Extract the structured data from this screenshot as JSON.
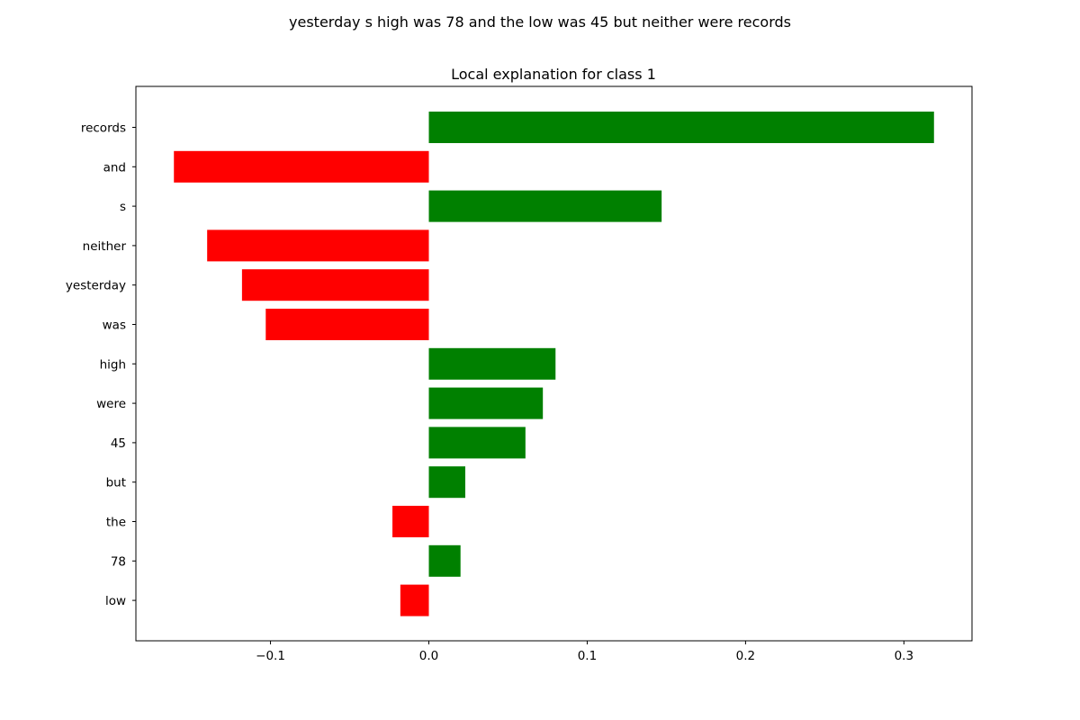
{
  "figure": {
    "suptitle": "yesterday s high was 78 and the low was 45 but neither were records"
  },
  "chart_data": {
    "type": "bar",
    "orientation": "horizontal",
    "title": "Local explanation for class 1",
    "xlabel": "",
    "ylabel": "",
    "categories": [
      "records",
      "and",
      "s",
      "neither",
      "yesterday",
      "was",
      "high",
      "were",
      "45",
      "but",
      "the",
      "78",
      "low"
    ],
    "values": [
      0.319,
      -0.161,
      0.147,
      -0.14,
      -0.118,
      -0.103,
      0.08,
      0.072,
      0.061,
      0.023,
      -0.023,
      0.02,
      -0.018
    ],
    "xlim": [
      -0.185,
      0.343
    ],
    "xticks": [
      -0.1,
      0.0,
      0.1,
      0.2,
      0.3
    ],
    "xtick_labels": [
      "−0.1",
      "0.0",
      "0.1",
      "0.2",
      "0.3"
    ],
    "grid": false,
    "colors": {
      "positive": "#008000",
      "negative": "#ff0000"
    }
  }
}
